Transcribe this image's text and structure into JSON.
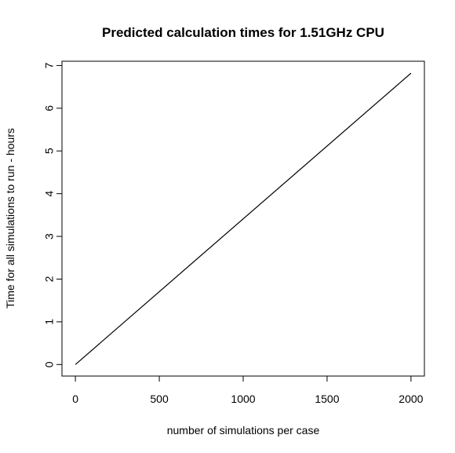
{
  "chart_data": {
    "type": "line",
    "title": "Predicted calculation times for 1.51GHz CPU",
    "xlabel": "number of simulations per case",
    "ylabel": "Time for all simulations to run - hours",
    "xlim": [
      -80,
      2080
    ],
    "ylim": [
      -0.27,
      7.1
    ],
    "x_ticks": [
      0,
      500,
      1000,
      1500,
      2000
    ],
    "y_ticks": [
      0,
      1,
      2,
      3,
      4,
      5,
      6,
      7
    ],
    "x_tick_labels": [
      "0",
      "500",
      "1000",
      "1500",
      "2000"
    ],
    "y_tick_labels": [
      "0",
      "1",
      "2",
      "3",
      "4",
      "5",
      "6",
      "7"
    ],
    "grid": false,
    "legend": "none",
    "line_color": "#000000",
    "series": [
      {
        "x": [
          0,
          2000
        ],
        "y": [
          0,
          6.82
        ]
      }
    ]
  }
}
